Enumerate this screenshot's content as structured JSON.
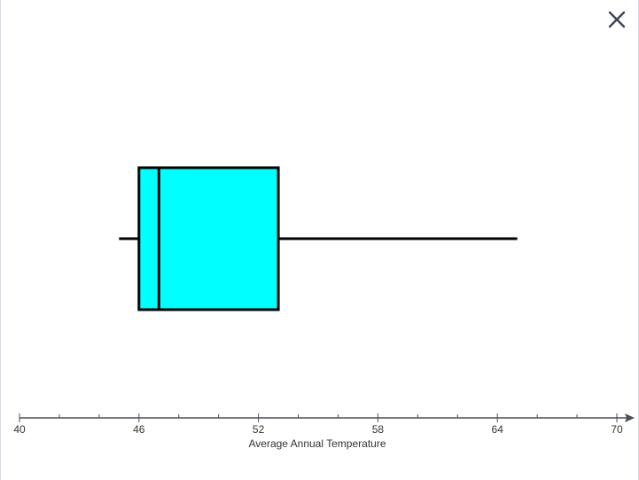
{
  "dialog": {
    "close_icon": "close-icon"
  },
  "colors": {
    "box_fill": "#00ffff",
    "stroke": "#000000",
    "axis": "#4a4f57",
    "close": "#3d4551"
  },
  "chart_data": {
    "type": "boxplot",
    "title": "",
    "xlabel": "Average Annual Temperature",
    "ylabel": "",
    "xlim": [
      40,
      70
    ],
    "ticks": [
      40,
      42,
      44,
      46,
      48,
      50,
      52,
      54,
      56,
      58,
      60,
      62,
      64,
      66,
      68,
      70
    ],
    "tick_labels": [
      {
        "value": 40,
        "label": "40"
      },
      {
        "value": 46,
        "label": "46"
      },
      {
        "value": 52,
        "label": "52"
      },
      {
        "value": 58,
        "label": "58"
      },
      {
        "value": 64,
        "label": "64"
      },
      {
        "value": 70,
        "label": "70"
      }
    ],
    "box": {
      "min": 45,
      "q1": 46,
      "median": 47,
      "q3": 53,
      "max": 65
    },
    "grid": false
  }
}
